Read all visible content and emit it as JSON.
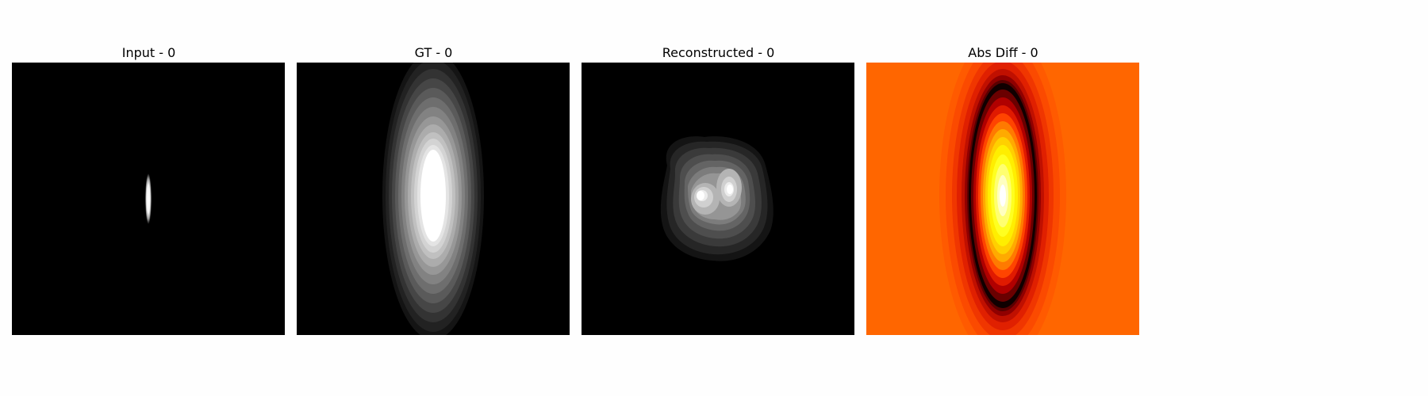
{
  "figure": {
    "panels": [
      {
        "title": "Input - 0",
        "icon": "input-slice-image"
      },
      {
        "title": "GT - 0",
        "icon": "ground-truth-image"
      },
      {
        "title": "Reconstructed - 0",
        "icon": "reconstructed-image"
      },
      {
        "title": "Abs Diff - 0",
        "icon": "abs-diff-heatmap"
      }
    ],
    "colors": {
      "background": "#fefefe",
      "image_black": "#000000",
      "diff_background": "#ff6600",
      "diff_hot": "#ffff00"
    }
  }
}
